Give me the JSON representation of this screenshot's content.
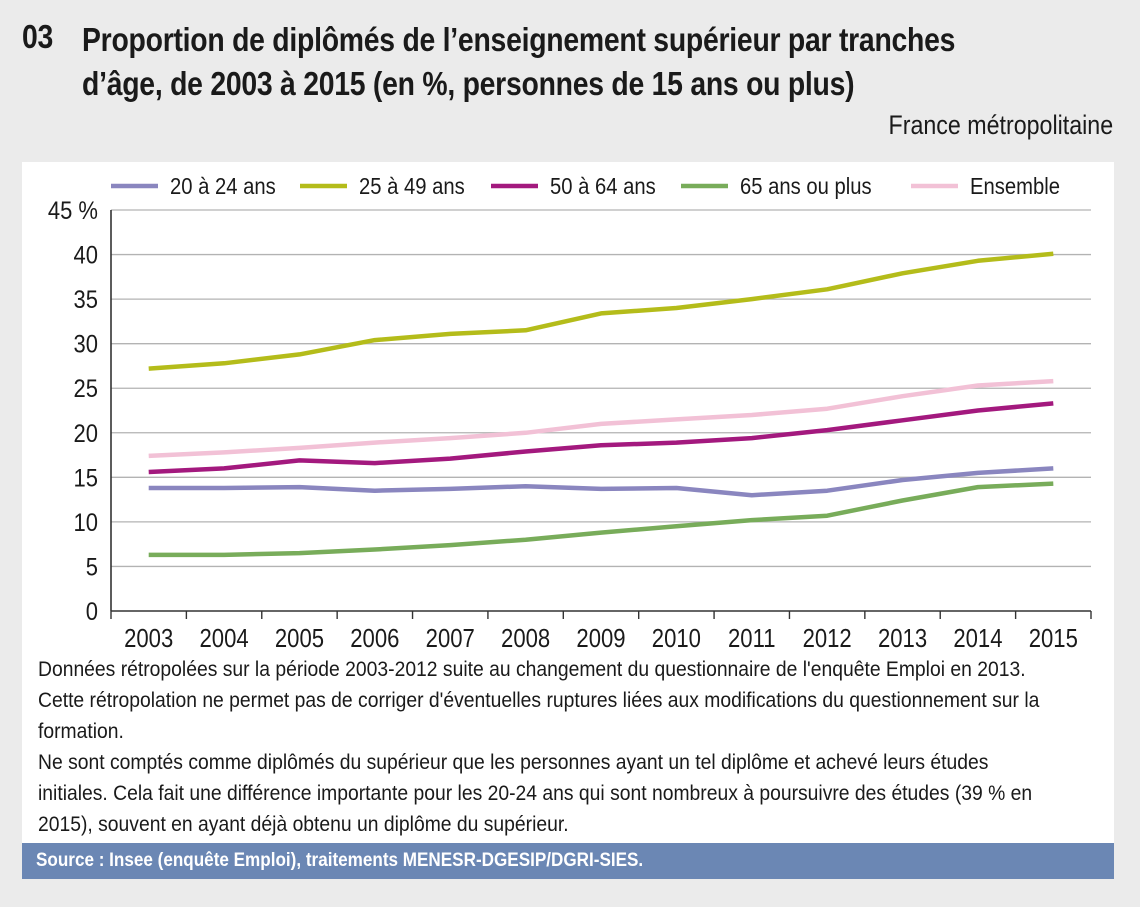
{
  "figure": {
    "number": "03",
    "title_line1": "Proportion de diplômés de l’enseignement supérieur par tranches",
    "title_line2": "d’âge, de 2003 à 2015 (en %, personnes de 15 ans ou plus)",
    "subtitle": "France métropolitaine"
  },
  "chart_data": {
    "type": "line",
    "title": "Proportion de diplômés de l’enseignement supérieur par tranches d’âge, de 2003 à 2015 (en %, personnes de 15 ans ou plus)",
    "xlabel": "",
    "ylabel": "%",
    "x": [
      "2003",
      "2004",
      "2005",
      "2006",
      "2007",
      "2008",
      "2009",
      "2010",
      "2011",
      "2012",
      "2013",
      "2014",
      "2015"
    ],
    "ylim": [
      0,
      45
    ],
    "yticks": [
      0,
      5,
      10,
      15,
      20,
      25,
      30,
      35,
      40,
      45
    ],
    "ytick_labels": [
      "0",
      "5",
      "10",
      "15",
      "20",
      "25",
      "30",
      "35",
      "40",
      "45 %"
    ],
    "grid": true,
    "legend_position": "top",
    "series": [
      {
        "name": "20 à 24 ans",
        "color": "#8a86bf",
        "values": [
          13.8,
          13.8,
          13.9,
          13.5,
          13.7,
          14.0,
          13.7,
          13.8,
          13.0,
          13.5,
          14.7,
          15.5,
          16.0
        ]
      },
      {
        "name": "25 à 49 ans",
        "color": "#b4bc1a",
        "values": [
          27.2,
          27.8,
          28.8,
          30.4,
          31.1,
          31.5,
          33.4,
          34.0,
          35.0,
          36.1,
          37.9,
          39.3,
          40.1
        ]
      },
      {
        "name": "50 à 64 ans",
        "color": "#a3197e",
        "values": [
          15.6,
          16.0,
          16.9,
          16.6,
          17.1,
          17.9,
          18.6,
          18.9,
          19.4,
          20.3,
          21.4,
          22.5,
          23.3
        ]
      },
      {
        "name": "65 ans ou plus",
        "color": "#78ac5a",
        "values": [
          6.3,
          6.3,
          6.5,
          6.9,
          7.4,
          8.0,
          8.8,
          9.5,
          10.2,
          10.7,
          12.4,
          13.9,
          14.3
        ]
      },
      {
        "name": "Ensemble",
        "color": "#f2c1d6",
        "values": [
          17.4,
          17.8,
          18.3,
          18.9,
          19.4,
          20.0,
          21.0,
          21.5,
          22.0,
          22.7,
          24.1,
          25.3,
          25.8
        ]
      }
    ]
  },
  "notes": [
    "Données rétropolées sur la période 2003-2012 suite au changement du questionnaire de l'enquête Emploi en 2013.",
    "Cette rétropolation ne permet pas de corriger d'éventuelles ruptures liées aux modifications du questionnement sur la",
    "formation.",
    "Ne sont comptés comme diplômés du supérieur que les personnes ayant un tel diplôme et achevé leurs études",
    "initiales. Cela fait une différence importante pour les 20-24 ans qui sont nombreux à poursuivre des études (39 % en",
    "2015), souvent en ayant déjà obtenu un diplôme du supérieur."
  ],
  "source": "Source : Insee (enquête Emploi), traitements MENESR-DGESIP/DGRI-SIES.",
  "colors": {
    "background": "#ebebeb",
    "panel": "#ffffff",
    "source_bar": "#6b87b4",
    "gridline": "#b3b3b3",
    "axis": "#333333"
  }
}
